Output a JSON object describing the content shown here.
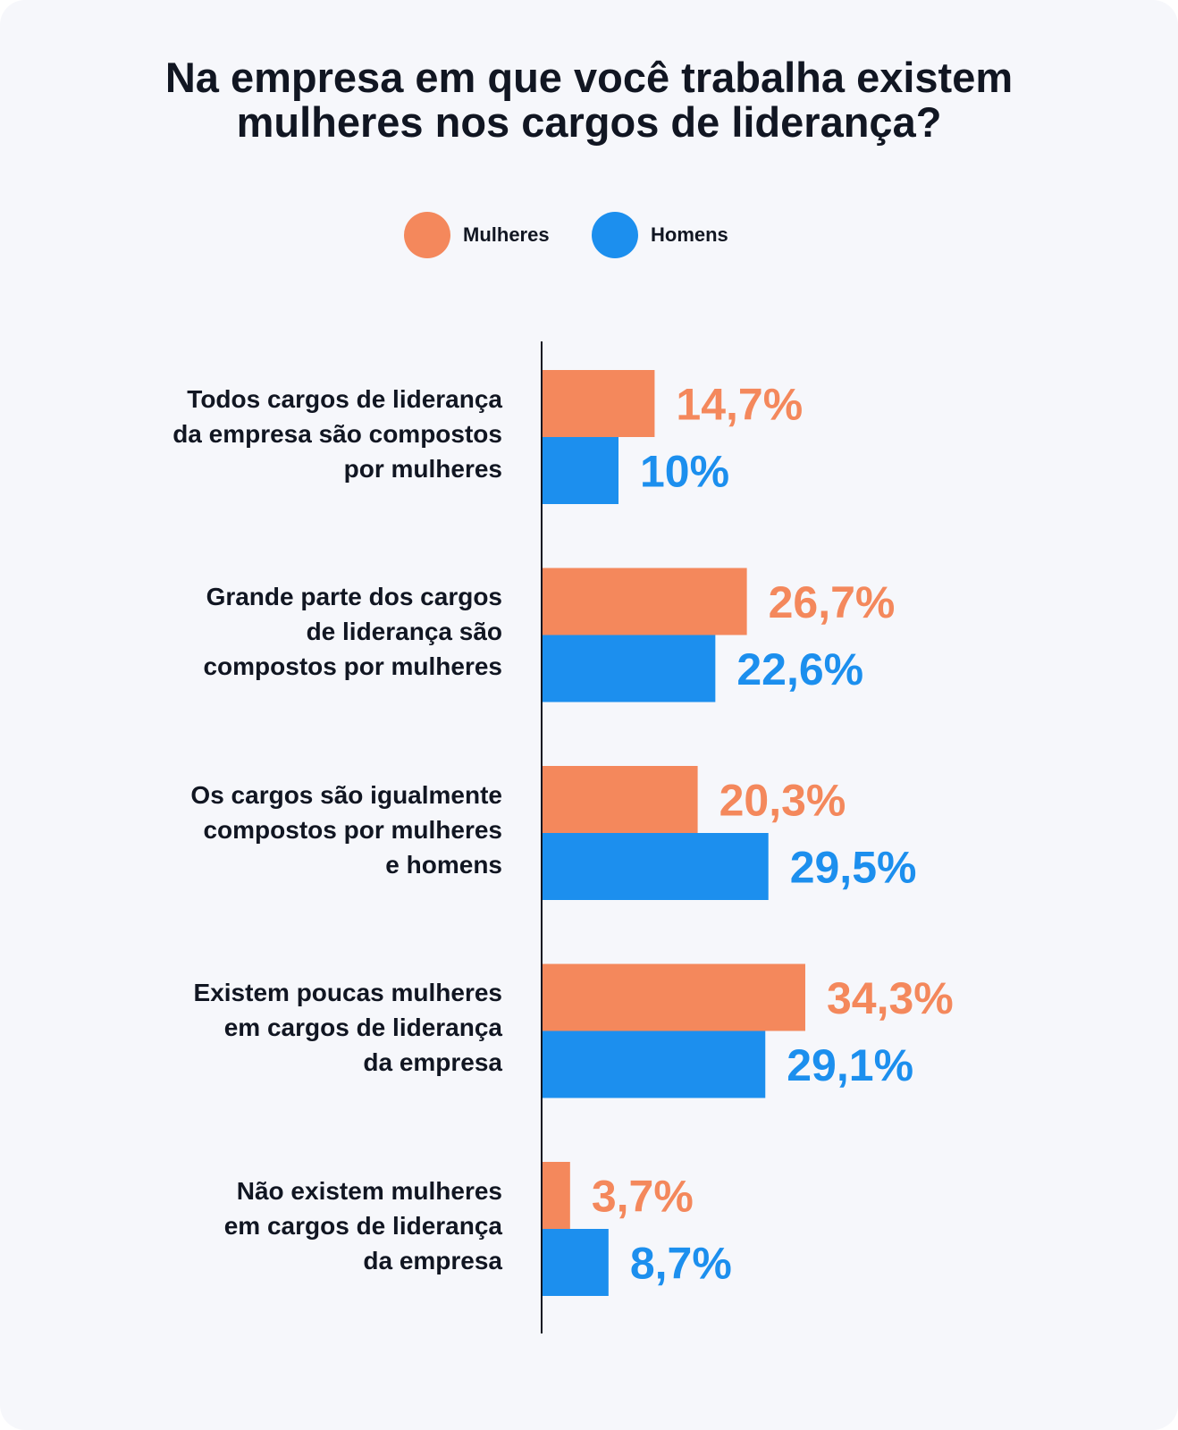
{
  "title_lines": [
    "Na empresa em que você trabalha existem",
    "mulheres nos cargos de liderança?"
  ],
  "colors": {
    "mulheres": "#f4885c",
    "homens": "#1c8fee",
    "axis": "#111622"
  },
  "chart_data": {
    "type": "bar",
    "orientation": "horizontal",
    "title": "Na empresa em que você trabalha existem mulheres nos cargos de liderança?",
    "categories": [
      [
        "Todos cargos de liderança",
        "da empresa são compostos",
        "por mulheres"
      ],
      [
        "Grande parte dos cargos",
        "de liderança são",
        "compostos por mulheres"
      ],
      [
        "Os cargos são igualmente",
        "compostos por mulheres",
        "e homens"
      ],
      [
        "Existem poucas mulheres",
        "em cargos de liderança",
        "da empresa"
      ],
      [
        "Não existem mulheres",
        "em cargos de liderança",
        "da empresa"
      ]
    ],
    "series": [
      {
        "name": "Mulheres",
        "values": [
          14.7,
          26.7,
          20.3,
          34.3,
          3.7
        ],
        "labels": [
          "14,7%",
          "26,7%",
          "20,3%",
          "34,3%",
          "3,7%"
        ]
      },
      {
        "name": "Homens",
        "values": [
          10,
          22.6,
          29.5,
          29.1,
          8.7
        ],
        "labels": [
          "10%",
          "22,6%",
          "29,5%",
          "29,1%",
          "8,7%"
        ]
      }
    ],
    "xlim": [
      0,
      35
    ],
    "grid": false,
    "legend": "top-center"
  }
}
